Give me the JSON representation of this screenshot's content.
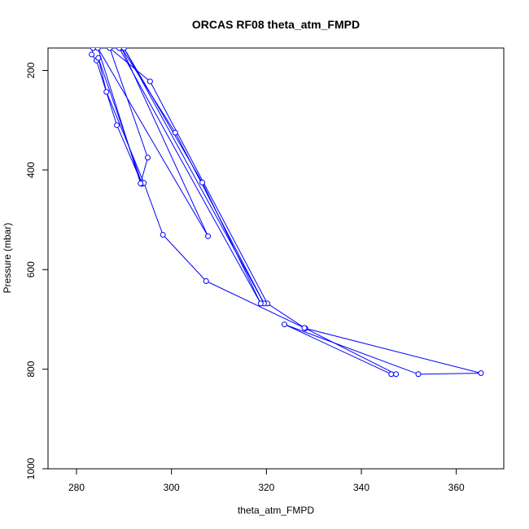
{
  "chart_data": {
    "type": "line",
    "title": "ORCAS RF08 theta_atm_FMPD",
    "xlabel": "theta_atm_FMPD",
    "ylabel": "Pressure (mbar)",
    "xlim": [
      274,
      370
    ],
    "ylim": [
      1000,
      155
    ],
    "y_reversed": true,
    "xticks": [
      280,
      300,
      320,
      340,
      360
    ],
    "yticks": [
      200,
      400,
      600,
      800,
      1000
    ],
    "grid": false,
    "line_color": "#0000ff",
    "marker": "open-circle",
    "series": [
      {
        "points": [
          {
            "x": 283.5,
            "y": 155
          },
          {
            "x": 283.2,
            "y": 168
          },
          {
            "x": 284.2,
            "y": 180
          },
          {
            "x": 288.5,
            "y": 310
          },
          {
            "x": 293.8,
            "y": 428
          },
          {
            "x": 284.6,
            "y": 175
          },
          {
            "x": 286.3,
            "y": 243
          },
          {
            "x": 294.2,
            "y": 426
          },
          {
            "x": 298.2,
            "y": 530
          },
          {
            "x": 307.3,
            "y": 623
          },
          {
            "x": 328.2,
            "y": 718
          },
          {
            "x": 365.2,
            "y": 808
          },
          {
            "x": 352.0,
            "y": 810
          },
          {
            "x": 323.8,
            "y": 710
          },
          {
            "x": 346.3,
            "y": 810
          },
          {
            "x": 347.3,
            "y": 810
          },
          {
            "x": 328.0,
            "y": 717
          },
          {
            "x": 320.2,
            "y": 668
          },
          {
            "x": 295.5,
            "y": 222
          },
          {
            "x": 287.0,
            "y": 155
          },
          {
            "x": 295.0,
            "y": 375
          },
          {
            "x": 293.5,
            "y": 427
          },
          {
            "x": 284.5,
            "y": 155
          },
          {
            "x": 307.7,
            "y": 533
          },
          {
            "x": 289.5,
            "y": 155
          },
          {
            "x": 300.8,
            "y": 325
          },
          {
            "x": 319.5,
            "y": 668
          },
          {
            "x": 290.0,
            "y": 155
          },
          {
            "x": 306.5,
            "y": 425
          },
          {
            "x": 318.8,
            "y": 668
          },
          {
            "x": 289.0,
            "y": 155
          }
        ]
      }
    ]
  }
}
